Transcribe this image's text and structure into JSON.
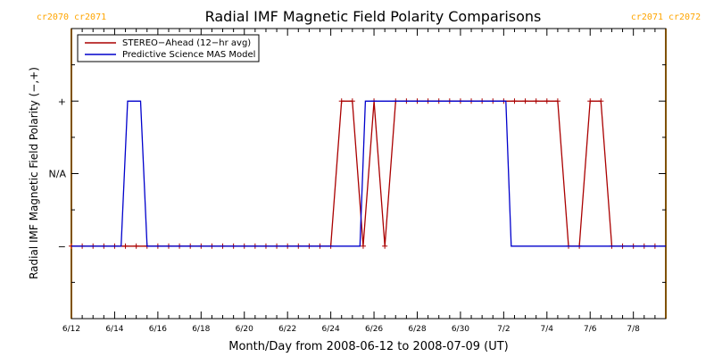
{
  "chart_data": {
    "type": "line",
    "title": "Radial IMF Magnetic Field Polarity Comparisons",
    "xlabel": "Month/Day from 2008-06-12 to 2008-07-09 (UT)",
    "ylabel": "Radial IMF Magnetic Field Polarity (−,+)",
    "x_tick_labels": [
      "6/12",
      "6/14",
      "6/16",
      "6/18",
      "6/20",
      "6/22",
      "6/24",
      "6/26",
      "6/28",
      "6/30",
      "7/2",
      "7/4",
      "7/6",
      "7/8"
    ],
    "x_tick_days": [
      0,
      2,
      4,
      6,
      8,
      10,
      12,
      14,
      16,
      18,
      20,
      22,
      24,
      26
    ],
    "x_range_days": [
      0,
      27.5
    ],
    "y_tick_labels": [
      "−",
      "N/A",
      "+"
    ],
    "y_tick_values": [
      -1,
      0,
      1
    ],
    "y_range": [
      -2,
      2
    ],
    "carrington_markers": [
      {
        "day": 0.0,
        "label_left": "cr2070",
        "label_right": "cr2071",
        "color": "#FFA500"
      },
      {
        "day": 27.5,
        "label_left": "cr2071",
        "label_right": "cr2072",
        "color": "#FFA500"
      }
    ],
    "legend": {
      "position": "top-left",
      "entries": [
        {
          "name": "STEREO−Ahead (12−hr avg)",
          "color": "#aa0000"
        },
        {
          "name": "Predictive Science MAS Model",
          "color": "#0000cc"
        }
      ]
    },
    "series": [
      {
        "name": "STEREO−Ahead (12−hr avg)",
        "color": "#aa0000",
        "markers": true,
        "points": [
          [
            0.0,
            -1
          ],
          [
            0.5,
            -1
          ],
          [
            1.0,
            -1
          ],
          [
            1.5,
            -1
          ],
          [
            2.0,
            -1
          ],
          [
            2.5,
            -1
          ],
          [
            3.0,
            -1
          ],
          [
            3.5,
            -1
          ],
          [
            4.0,
            -1
          ],
          [
            4.5,
            -1
          ],
          [
            5.0,
            -1
          ],
          [
            5.5,
            -1
          ],
          [
            6.0,
            -1
          ],
          [
            6.5,
            -1
          ],
          [
            7.0,
            -1
          ],
          [
            7.5,
            -1
          ],
          [
            8.0,
            -1
          ],
          [
            8.5,
            -1
          ],
          [
            9.0,
            -1
          ],
          [
            9.5,
            -1
          ],
          [
            10.0,
            -1
          ],
          [
            10.5,
            -1
          ],
          [
            11.0,
            -1
          ],
          [
            11.5,
            -1
          ],
          [
            12.0,
            -1
          ],
          [
            12.5,
            1
          ],
          [
            13.0,
            1
          ],
          [
            13.5,
            -1
          ],
          [
            14.0,
            1
          ],
          [
            14.5,
            -1
          ],
          [
            15.0,
            1
          ],
          [
            15.5,
            1
          ],
          [
            16.0,
            1
          ],
          [
            16.5,
            1
          ],
          [
            17.0,
            1
          ],
          [
            17.5,
            1
          ],
          [
            18.0,
            1
          ],
          [
            18.5,
            1
          ],
          [
            19.0,
            1
          ],
          [
            19.5,
            1
          ],
          [
            20.0,
            1
          ],
          [
            20.5,
            1
          ],
          [
            21.0,
            1
          ],
          [
            21.5,
            1
          ],
          [
            22.0,
            1
          ],
          [
            22.5,
            1
          ],
          [
            23.0,
            -1
          ],
          [
            23.5,
            -1
          ],
          [
            24.0,
            1
          ],
          [
            24.5,
            1
          ],
          [
            25.0,
            -1
          ],
          [
            25.5,
            -1
          ],
          [
            26.0,
            -1
          ],
          [
            26.5,
            -1
          ],
          [
            27.0,
            -1
          ]
        ]
      },
      {
        "name": "Predictive Science MAS Model",
        "color": "#0000cc",
        "markers": false,
        "points": [
          [
            0.0,
            -1
          ],
          [
            2.3,
            -1
          ],
          [
            2.6,
            1
          ],
          [
            3.2,
            1
          ],
          [
            3.5,
            -1
          ],
          [
            13.35,
            -1
          ],
          [
            13.6,
            1
          ],
          [
            20.1,
            1
          ],
          [
            20.35,
            -1
          ],
          [
            27.5,
            -1
          ]
        ]
      }
    ]
  }
}
